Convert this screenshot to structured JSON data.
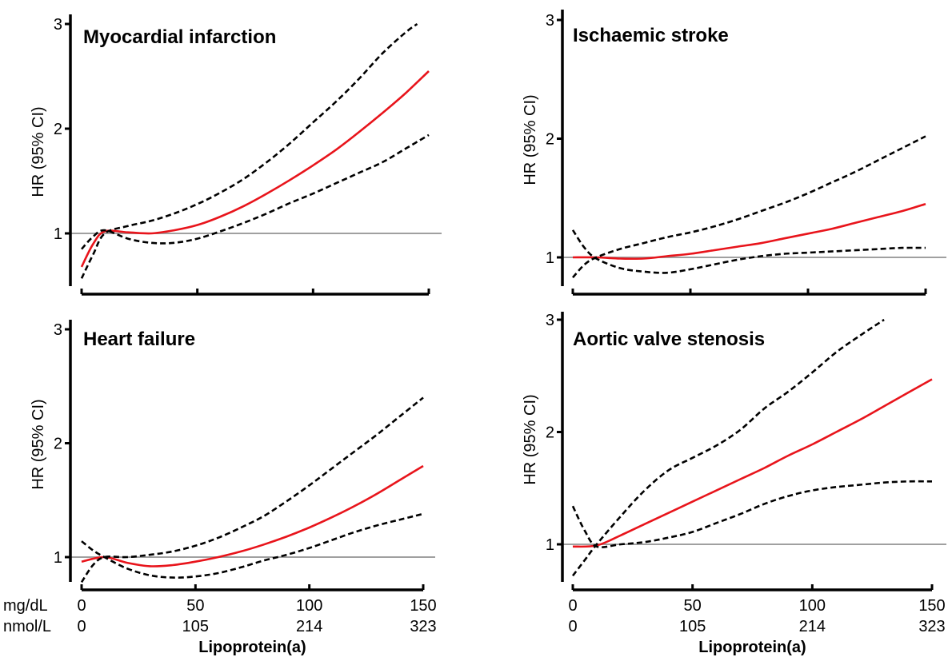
{
  "colors": {
    "estimate": "#e8141b",
    "ci": "#000000",
    "reference": "#a0a0a0",
    "axis": "#000000"
  },
  "x_unit_labels": [
    "mg/dL",
    "nmol/L"
  ],
  "chart_data": [
    {
      "type": "line",
      "title": "Myocardial infarction",
      "ylabel": "HR (95% CI)",
      "xlabel": "",
      "xlim": [
        0,
        150
      ],
      "ylim": [
        0.5,
        3
      ],
      "yticks": [
        1,
        2,
        3
      ],
      "xticks": [
        0,
        50,
        100,
        150
      ],
      "xtick_labels": [],
      "xtick_labels_nmol": [],
      "reference_line": 1,
      "series": [
        {
          "style": "estimate",
          "x": [
            0,
            5,
            10,
            20,
            30,
            40,
            50,
            60,
            70,
            80,
            90,
            100,
            110,
            120,
            130,
            140,
            150
          ],
          "y": [
            0.68,
            0.9,
            1.02,
            1.01,
            1.0,
            1.03,
            1.08,
            1.16,
            1.26,
            1.38,
            1.51,
            1.65,
            1.8,
            1.97,
            2.15,
            2.34,
            2.55
          ]
        },
        {
          "style": "ci",
          "x": [
            0,
            5,
            10,
            20,
            30,
            40,
            50,
            60,
            70,
            80,
            90,
            100,
            110,
            120,
            130,
            140,
            145
          ],
          "y": [
            0.57,
            0.8,
            1.0,
            1.07,
            1.12,
            1.19,
            1.28,
            1.39,
            1.52,
            1.68,
            1.86,
            2.06,
            2.26,
            2.48,
            2.72,
            2.92,
            3.0
          ]
        },
        {
          "style": "ci",
          "x": [
            0,
            5,
            10,
            20,
            30,
            40,
            50,
            60,
            70,
            80,
            90,
            100,
            110,
            120,
            130,
            140,
            150
          ],
          "y": [
            0.85,
            0.97,
            1.03,
            0.95,
            0.91,
            0.91,
            0.95,
            1.02,
            1.1,
            1.19,
            1.29,
            1.38,
            1.48,
            1.58,
            1.68,
            1.81,
            1.94
          ]
        }
      ]
    },
    {
      "type": "line",
      "title": "Ischaemic stroke",
      "ylabel": "HR (95% CI)",
      "xlabel": "",
      "xlim": [
        0,
        150
      ],
      "ylim": [
        0.9,
        3
      ],
      "yticks": [
        1,
        2,
        3
      ],
      "xticks": [
        0,
        50,
        100,
        150
      ],
      "xtick_labels": [],
      "xtick_labels_nmol": [],
      "reference_line": 1,
      "series": [
        {
          "style": "estimate",
          "x": [
            0,
            10,
            20,
            30,
            40,
            50,
            60,
            70,
            80,
            90,
            100,
            110,
            120,
            130,
            140,
            150
          ],
          "y": [
            1.0,
            1.0,
            0.99,
            0.99,
            1.01,
            1.03,
            1.06,
            1.09,
            1.12,
            1.16,
            1.2,
            1.24,
            1.29,
            1.34,
            1.39,
            1.45
          ]
        },
        {
          "style": "ci",
          "x": [
            0,
            5,
            10,
            20,
            30,
            40,
            50,
            60,
            70,
            80,
            90,
            100,
            110,
            120,
            130,
            140,
            150
          ],
          "y": [
            0.83,
            0.94,
            1.0,
            1.07,
            1.12,
            1.17,
            1.21,
            1.26,
            1.32,
            1.39,
            1.46,
            1.54,
            1.63,
            1.72,
            1.82,
            1.92,
            2.02
          ]
        },
        {
          "style": "ci",
          "x": [
            0,
            5,
            10,
            20,
            30,
            40,
            50,
            60,
            70,
            80,
            90,
            100,
            110,
            120,
            130,
            140,
            150
          ],
          "y": [
            1.23,
            1.08,
            0.99,
            0.91,
            0.88,
            0.87,
            0.9,
            0.94,
            0.98,
            1.01,
            1.03,
            1.04,
            1.05,
            1.06,
            1.07,
            1.08,
            1.08
          ]
        }
      ]
    },
    {
      "type": "line",
      "title": "Heart failure",
      "ylabel": "HR (95% CI)",
      "xlabel": "Lipoprotein(a)",
      "xlim": [
        0,
        150
      ],
      "ylim": [
        0.7,
        3
      ],
      "yticks": [
        1,
        2,
        3
      ],
      "xticks": [
        0,
        50,
        100,
        150
      ],
      "xtick_labels": [
        "0",
        "50",
        "100",
        "150"
      ],
      "xtick_labels_nmol": [
        "0",
        "105",
        "214",
        "323"
      ],
      "reference_line": 1,
      "series": [
        {
          "style": "estimate",
          "x": [
            0,
            10,
            20,
            30,
            40,
            50,
            60,
            70,
            80,
            90,
            100,
            110,
            120,
            130,
            140,
            150
          ],
          "y": [
            0.96,
            1.0,
            0.95,
            0.92,
            0.93,
            0.96,
            1.0,
            1.05,
            1.11,
            1.18,
            1.26,
            1.35,
            1.45,
            1.56,
            1.68,
            1.8
          ]
        },
        {
          "style": "ci",
          "x": [
            0,
            5,
            10,
            20,
            30,
            40,
            50,
            60,
            70,
            80,
            90,
            100,
            110,
            120,
            130,
            140,
            150
          ],
          "y": [
            0.78,
            0.93,
            1.0,
            1.0,
            1.02,
            1.05,
            1.1,
            1.17,
            1.26,
            1.36,
            1.49,
            1.63,
            1.78,
            1.93,
            2.08,
            2.24,
            2.4
          ]
        },
        {
          "style": "ci",
          "x": [
            0,
            5,
            10,
            20,
            30,
            40,
            50,
            60,
            70,
            80,
            90,
            100,
            110,
            120,
            130,
            140,
            150
          ],
          "y": [
            1.14,
            1.06,
            1.0,
            0.9,
            0.84,
            0.82,
            0.83,
            0.86,
            0.91,
            0.97,
            1.02,
            1.08,
            1.15,
            1.22,
            1.28,
            1.33,
            1.38
          ]
        }
      ]
    },
    {
      "type": "line",
      "title": "Aortic valve stenosis",
      "ylabel": "HR (95% CI)",
      "xlabel": "Lipoprotein(a)",
      "xlim": [
        0,
        150
      ],
      "ylim": [
        0.7,
        3
      ],
      "yticks": [
        1,
        2,
        3
      ],
      "xticks": [
        0,
        50,
        100,
        150
      ],
      "xtick_labels": [
        "0",
        "50",
        "100",
        "150"
      ],
      "xtick_labels_nmol": [
        "0",
        "105",
        "214",
        "323"
      ],
      "reference_line": 1,
      "series": [
        {
          "style": "estimate",
          "x": [
            0,
            10,
            20,
            30,
            40,
            50,
            60,
            70,
            80,
            90,
            100,
            110,
            120,
            130,
            140,
            150
          ],
          "y": [
            0.98,
            0.99,
            1.08,
            1.18,
            1.28,
            1.38,
            1.48,
            1.58,
            1.68,
            1.79,
            1.89,
            2.0,
            2.11,
            2.23,
            2.35,
            2.47
          ]
        },
        {
          "style": "ci",
          "x": [
            0,
            5,
            10,
            20,
            30,
            40,
            50,
            60,
            70,
            80,
            90,
            100,
            110,
            120,
            130
          ],
          "y": [
            0.72,
            0.86,
            1.0,
            1.25,
            1.48,
            1.66,
            1.77,
            1.88,
            2.02,
            2.21,
            2.36,
            2.53,
            2.71,
            2.86,
            3.0
          ]
        },
        {
          "style": "ci",
          "x": [
            0,
            5,
            10,
            20,
            30,
            40,
            50,
            60,
            70,
            80,
            90,
            100,
            110,
            120,
            130,
            140,
            150
          ],
          "y": [
            1.34,
            1.12,
            0.98,
            1.0,
            1.02,
            1.06,
            1.11,
            1.19,
            1.27,
            1.36,
            1.43,
            1.48,
            1.51,
            1.53,
            1.55,
            1.56,
            1.56
          ]
        }
      ]
    }
  ]
}
